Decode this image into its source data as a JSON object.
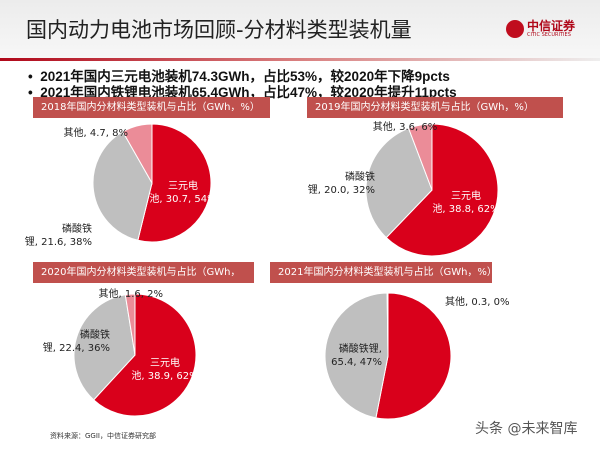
{
  "header": {
    "title": "国内动力电池市场回顾-分材料类型装机量",
    "logo_cn": "中信证券",
    "logo_en": "CITIC SECURITIES"
  },
  "bullets": [
    "2021年国内三元电池装机74.3GWh，占比53%，较2020年下降9pcts",
    "2021年国内铁锂电池装机65.4GWh，占比47%，较2020年提升11pcts"
  ],
  "colors": {
    "ternary": "#d9001b",
    "lfp": "#bfbfbf",
    "other": "#eb8c98",
    "header_box": "#c0504d"
  },
  "chart_data": [
    {
      "type": "pie",
      "title": "2018年国内分材料类型装机与占比（GWh，%）",
      "slices": [
        {
          "label": [
            "三元电",
            "池, 30.7, 54%"
          ],
          "name": "三元电池",
          "value": 30.7,
          "pct": 54
        },
        {
          "label": [
            "磷酸铁",
            "锂, 21.6, 38%"
          ],
          "name": "磷酸铁锂",
          "value": 21.6,
          "pct": 38
        },
        {
          "label": [
            "其他, 4.7, 8%"
          ],
          "name": "其他",
          "value": 4.7,
          "pct": 8
        }
      ]
    },
    {
      "type": "pie",
      "title": "2019年国内分材料类型装机与占比（GWh，%）",
      "slices": [
        {
          "label": [
            "三元电",
            "池, 38.8, 62%"
          ],
          "name": "三元电池",
          "value": 38.8,
          "pct": 62
        },
        {
          "label": [
            "磷酸铁",
            "锂, 20.0, 32%"
          ],
          "name": "磷酸铁锂",
          "value": 20.0,
          "pct": 32
        },
        {
          "label": [
            "其他, 3.6, 6%"
          ],
          "name": "其他",
          "value": 3.6,
          "pct": 6
        }
      ]
    },
    {
      "type": "pie",
      "title": "2020年国内分材料类型装机与占比（GWh，%）",
      "slices": [
        {
          "label": [
            "三元电",
            "池, 38.9, 62%"
          ],
          "name": "三元电池",
          "value": 38.9,
          "pct": 62
        },
        {
          "label": [
            "磷酸铁",
            "锂, 22.4, 36%"
          ],
          "name": "磷酸铁锂",
          "value": 22.4,
          "pct": 36
        },
        {
          "label": [
            "其他, 1.6, 2%"
          ],
          "name": "其他",
          "value": 1.6,
          "pct": 2
        }
      ]
    },
    {
      "type": "pie",
      "title": "2021年国内分材料类型装机与占比（GWh，%）",
      "slices": [
        {
          "label": [
            "三元电池,",
            "74.3,  53%"
          ],
          "name": "三元电池",
          "value": 74.3,
          "pct": 53
        },
        {
          "label": [
            "磷酸铁锂,",
            "65.4,  47%"
          ],
          "name": "磷酸铁锂",
          "value": 65.4,
          "pct": 47
        },
        {
          "label": [
            "其他,  0.3,  0%"
          ],
          "name": "其他",
          "value": 0.3,
          "pct": 0
        }
      ]
    }
  ],
  "footer": {
    "source": "资料来源：GGII，中信证券研究部",
    "watermark": "头条 @未来智库"
  }
}
